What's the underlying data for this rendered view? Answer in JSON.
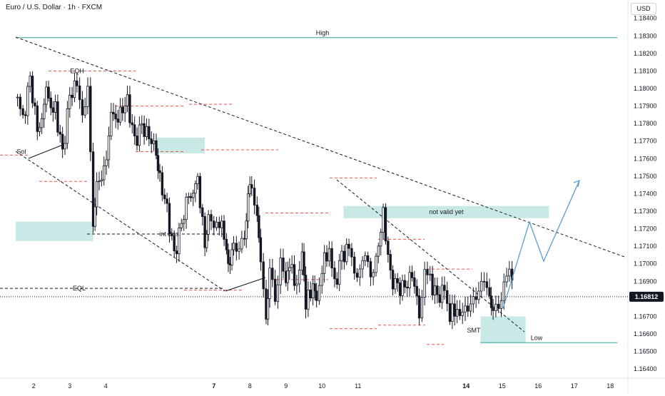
{
  "symbol_title": "Euro / U.S. Dollar · 1h · FXCM",
  "currency": "USD",
  "colors": {
    "up": "#26a69a",
    "down": "#ef5350",
    "candle": "#131722",
    "zone": "#b2dfdb",
    "level_line": "#26a69a",
    "red_dash": "#ef5350",
    "trend_dash": "#131722",
    "projection": "#5b9bd5",
    "price_label_bg": "#131722",
    "grid": "#f0f3fa"
  },
  "chart_data": {
    "type": "candlestick",
    "y_axis_ticks": [
      "1.18400",
      "1.18300",
      "1.18200",
      "1.18100",
      "1.18000",
      "1.17900",
      "1.17800",
      "1.17700",
      "1.17600",
      "1.17500",
      "1.17400",
      "1.17300",
      "1.17200",
      "1.17100",
      "1.17000",
      "1.16900",
      "1.16800",
      "1.16700",
      "1.16600",
      "1.16500",
      "1.16400"
    ],
    "ylim": [
      1.1637,
      1.1846
    ],
    "x_axis_ticks": [
      "2",
      "3",
      "4",
      "7",
      "8",
      "9",
      "10",
      "11",
      "14",
      "15",
      "16",
      "17",
      "18"
    ],
    "bold_x_ticks": [
      "7",
      "14"
    ],
    "xlim": [
      1.5,
      18.2
    ],
    "current_price": "1.16812",
    "close_path": [
      [
        1.55,
        1.1795
      ],
      [
        1.7,
        1.1781
      ],
      [
        1.9,
        1.1805
      ],
      [
        2.1,
        1.1776
      ],
      [
        2.35,
        1.1798
      ],
      [
        2.6,
        1.1788
      ],
      [
        2.8,
        1.1762
      ],
      [
        3.0,
        1.1795
      ],
      [
        3.2,
        1.1803
      ],
      [
        3.35,
        1.1788
      ],
      [
        3.5,
        1.1797
      ],
      [
        3.65,
        1.1722
      ],
      [
        3.75,
        1.1745
      ],
      [
        3.95,
        1.1752
      ],
      [
        4.15,
        1.1782
      ],
      [
        4.4,
        1.1786
      ],
      [
        4.6,
        1.1792
      ],
      [
        4.8,
        1.1769
      ],
      [
        5.0,
        1.1778
      ],
      [
        5.2,
        1.1772
      ],
      [
        5.4,
        1.1765
      ],
      [
        5.5,
        1.1748
      ],
      [
        5.7,
        1.173
      ],
      [
        5.9,
        1.1704
      ],
      [
        6.1,
        1.1722
      ],
      [
        6.3,
        1.174
      ],
      [
        6.55,
        1.1748
      ],
      [
        6.75,
        1.171
      ],
      [
        6.85,
        1.1726
      ],
      [
        7.0,
        1.1718
      ],
      [
        7.15,
        1.1725
      ],
      [
        7.35,
        1.1712
      ],
      [
        7.45,
        1.1696
      ],
      [
        7.55,
        1.1714
      ],
      [
        7.7,
        1.1704
      ],
      [
        7.85,
        1.1716
      ],
      [
        7.95,
        1.1737
      ],
      [
        8.05,
        1.1747
      ],
      [
        8.2,
        1.1728
      ],
      [
        8.3,
        1.1702
      ],
      [
        8.45,
        1.1672
      ],
      [
        8.55,
        1.1695
      ],
      [
        8.7,
        1.1683
      ],
      [
        8.85,
        1.1702
      ],
      [
        9.0,
        1.1686
      ],
      [
        9.1,
        1.17
      ],
      [
        9.3,
        1.1688
      ],
      [
        9.45,
        1.1703
      ],
      [
        9.55,
        1.1677
      ],
      [
        9.75,
        1.1689
      ],
      [
        9.85,
        1.168
      ],
      [
        10.0,
        1.1698
      ],
      [
        10.2,
        1.171
      ],
      [
        10.35,
        1.1687
      ],
      [
        10.55,
        1.1704
      ],
      [
        10.75,
        1.1708
      ],
      [
        10.9,
        1.1699
      ],
      [
        11.05,
        1.1694
      ],
      [
        11.2,
        1.1703
      ],
      [
        11.35,
        1.1697
      ],
      [
        11.5,
        1.1702
      ],
      [
        11.7,
        1.1728
      ],
      [
        11.9,
        1.1692
      ],
      [
        12.1,
        1.1686
      ],
      [
        12.3,
        1.1686
      ],
      [
        12.5,
        1.1694
      ],
      [
        12.7,
        1.1673
      ],
      [
        12.85,
        1.1697
      ],
      [
        13.0,
        1.169
      ],
      [
        13.2,
        1.168
      ],
      [
        13.4,
        1.1685
      ],
      [
        13.55,
        1.1671
      ],
      [
        13.75,
        1.1676
      ],
      [
        13.9,
        1.1668
      ],
      [
        14.05,
        1.1675
      ],
      [
        14.2,
        1.1684
      ],
      [
        14.35,
        1.168
      ],
      [
        14.5,
        1.1691
      ],
      [
        14.65,
        1.1685
      ],
      [
        14.75,
        1.1671
      ],
      [
        14.9,
        1.1679
      ],
      [
        15.05,
        1.1688
      ],
      [
        15.2,
        1.1694
      ],
      [
        15.35,
        1.1682
      ]
    ],
    "levels": [
      {
        "label": "High",
        "price": 1.1829,
        "x_from": 1.5,
        "x_to": 18.2
      },
      {
        "label": "Low",
        "price": 1.1655,
        "x_from": 14.4,
        "x_to": 18.2
      }
    ],
    "zones": [
      {
        "label": "",
        "x_from": 1.5,
        "x_to": 3.65,
        "price_top": 1.1724,
        "price_bottom": 1.1713
      },
      {
        "label": "",
        "x_from": 5.4,
        "x_to": 6.75,
        "price_top": 1.1772,
        "price_bottom": 1.1763
      },
      {
        "label": "not valid yet",
        "x_from": 10.6,
        "x_to": 16.3,
        "price_top": 1.1733,
        "price_bottom": 1.1726
      },
      {
        "label": "",
        "x_from": 14.4,
        "x_to": 15.65,
        "price_top": 1.167,
        "price_bottom": 1.1655
      }
    ],
    "annotations": [
      {
        "text": "EQH",
        "x": 2.7,
        "price": 1.181
      },
      {
        "text": "Sol",
        "x": 1.6,
        "price": 1.1764
      },
      {
        "text": "int Bos",
        "x": 4.7,
        "price": 1.1717
      },
      {
        "text": "EQL",
        "x": 2.8,
        "price": 1.1686
      },
      {
        "text": "SMT",
        "x": 14.95,
        "price": 1.1662
      }
    ]
  }
}
